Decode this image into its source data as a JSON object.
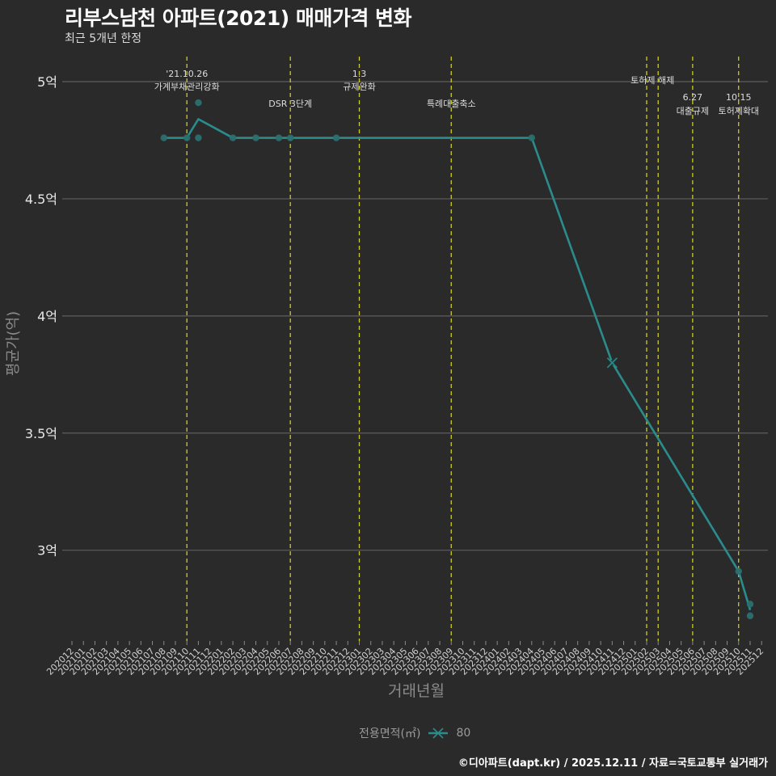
{
  "header": {
    "title": "리부스남천 아파트(2021) 매매가격 변화",
    "subtitle": "최근 5개년 한정"
  },
  "axes": {
    "x_title": "거래년월",
    "y_title": "평균가(억)"
  },
  "legend": {
    "title": "전용면적(㎡)",
    "items": [
      {
        "label": "80",
        "color": "#2b8c8c",
        "icon": "line-x-marker-icon"
      }
    ]
  },
  "caption": "©디아파트(dapt.kr) / 2025.12.11 / 자료=국토교통부 실거래가",
  "colors": {
    "background": "#2b2a2b",
    "line": "#2b8c8c",
    "point": "#2a7070",
    "event_line": "#cccc22",
    "grid": "#5e5e5e",
    "text": "#dddddd"
  },
  "chart_data": {
    "type": "line",
    "title": "리부스남천 아파트(2021) 매매가격 변화",
    "subtitle": "최근 5개년 한정",
    "xlabel": "거래년월",
    "ylabel": "평균가(억)",
    "ylim": [
      2.68,
      5.1
    ],
    "grid": {
      "horizontal": true,
      "vertical": false
    },
    "legend_position": "bottom",
    "y_ticks": [
      {
        "value": 5.0,
        "label": "5억"
      },
      {
        "value": 4.5,
        "label": "4.5억"
      },
      {
        "value": 4.0,
        "label": "4억"
      },
      {
        "value": 3.5,
        "label": "3.5억"
      },
      {
        "value": 3.0,
        "label": "3억"
      }
    ],
    "x_tick_labels": [
      "202012",
      "202101",
      "202102",
      "202103",
      "202104",
      "202105",
      "202106",
      "202107",
      "202108",
      "202109",
      "202110",
      "202111",
      "202112",
      "202201",
      "202202",
      "202203",
      "202204",
      "202205",
      "202206",
      "202207",
      "202208",
      "202209",
      "202210",
      "202211",
      "202212",
      "202301",
      "202302",
      "202303",
      "202304",
      "202305",
      "202306",
      "202307",
      "202308",
      "202309",
      "202310",
      "202311",
      "202312",
      "202401",
      "202402",
      "202403",
      "202404",
      "202405",
      "202406",
      "202407",
      "202408",
      "202409",
      "202410",
      "202411",
      "202412",
      "202501",
      "202502",
      "202503",
      "202504",
      "202505",
      "202506",
      "202507",
      "202508",
      "202509",
      "202510",
      "202511",
      "202512"
    ],
    "series": [
      {
        "name": "80",
        "x": [
          "202108",
          "202110",
          "202111",
          "202202",
          "202204",
          "202206",
          "202207",
          "202211",
          "202404",
          "202411",
          "202510",
          "202511"
        ],
        "values": [
          4.76,
          4.76,
          4.84,
          4.76,
          4.76,
          4.76,
          4.76,
          4.76,
          4.76,
          3.8,
          2.91,
          2.745
        ]
      }
    ],
    "trades": [
      {
        "x": "202108",
        "value": 4.76
      },
      {
        "x": "202110",
        "value": 4.76
      },
      {
        "x": "202111",
        "value": 4.91
      },
      {
        "x": "202111",
        "value": 4.76
      },
      {
        "x": "202202",
        "value": 4.76
      },
      {
        "x": "202204",
        "value": 4.76
      },
      {
        "x": "202206",
        "value": 4.76
      },
      {
        "x": "202207",
        "value": 4.76
      },
      {
        "x": "202211",
        "value": 4.76
      },
      {
        "x": "202404",
        "value": 4.76
      },
      {
        "x": "202510",
        "value": 2.91
      },
      {
        "x": "202511",
        "value": 2.77
      },
      {
        "x": "202511",
        "value": 2.72
      }
    ],
    "x_markers": [
      {
        "x": "202411",
        "value": 3.8
      }
    ],
    "annotations": [
      {
        "x": "202110",
        "lines": [
          "'21.10.26",
          "가계부채관리강화"
        ],
        "y": [
          91,
          107
        ]
      },
      {
        "x": "202207",
        "lines": [
          "DSR 3단계"
        ],
        "y": [
          128
        ]
      },
      {
        "x": "202301",
        "lines": [
          "1.3",
          "규제완화"
        ],
        "y": [
          91,
          107
        ]
      },
      {
        "x": "202309",
        "lines": [
          "특례대출축소"
        ],
        "y": [
          128
        ]
      },
      {
        "x": "202502",
        "lines": [],
        "y": []
      },
      {
        "x": "202503",
        "lines": [
          "토허제 해제"
        ],
        "y": [
          99
        ],
        "dx": -7
      },
      {
        "x": "202506",
        "lines": [
          "6.27",
          "대출규제"
        ],
        "y": [
          120,
          137
        ]
      },
      {
        "x": "202510",
        "lines": [
          "10.15",
          "토허제확대"
        ],
        "y": [
          120,
          137
        ]
      }
    ]
  }
}
